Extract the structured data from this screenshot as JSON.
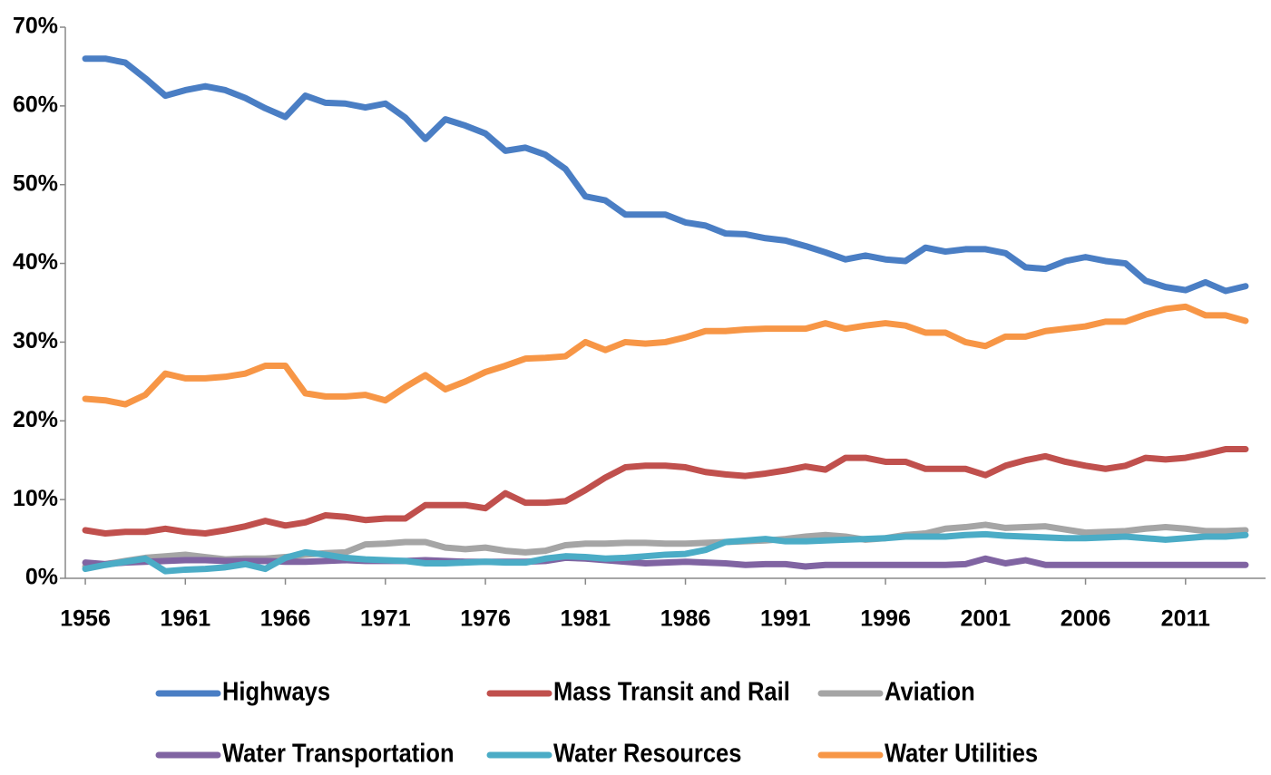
{
  "chart_data": {
    "type": "line",
    "x": [
      1956,
      1957,
      1958,
      1959,
      1960,
      1961,
      1962,
      1963,
      1964,
      1965,
      1966,
      1967,
      1968,
      1969,
      1970,
      1971,
      1972,
      1973,
      1974,
      1975,
      1976,
      1977,
      1978,
      1979,
      1980,
      1981,
      1982,
      1983,
      1984,
      1985,
      1986,
      1987,
      1988,
      1989,
      1990,
      1991,
      1992,
      1993,
      1994,
      1995,
      1996,
      1997,
      1998,
      1999,
      2000,
      2001,
      2002,
      2003,
      2004,
      2005,
      2006,
      2007,
      2008,
      2009,
      2010,
      2011,
      2012,
      2013,
      2014
    ],
    "xlim": [
      1955,
      2015
    ],
    "xticks": [
      1956,
      1961,
      1966,
      1971,
      1976,
      1981,
      1986,
      1991,
      1996,
      2001,
      2006,
      2011
    ],
    "ylim": [
      0,
      70
    ],
    "yticks": [
      {
        "value": 0,
        "label": "0%"
      },
      {
        "value": 10,
        "label": "10%"
      },
      {
        "value": 20,
        "label": "20%"
      },
      {
        "value": 30,
        "label": "30%"
      },
      {
        "value": 40,
        "label": "40%"
      },
      {
        "value": 50,
        "label": "50%"
      },
      {
        "value": 60,
        "label": "60%"
      },
      {
        "value": 70,
        "label": "70%"
      }
    ],
    "grid": false,
    "legend": "bottom",
    "series": [
      {
        "name": "Highways",
        "color": "#4a7ec4",
        "values": [
          66.0,
          66.0,
          65.5,
          63.5,
          61.3,
          62.0,
          62.5,
          62.0,
          61.0,
          59.7,
          58.6,
          61.3,
          60.4,
          60.3,
          59.8,
          60.3,
          58.5,
          55.8,
          58.3,
          57.5,
          56.5,
          54.3,
          54.7,
          53.8,
          52.0,
          48.5,
          48.0,
          46.2,
          46.2,
          46.2,
          45.2,
          44.8,
          43.8,
          43.7,
          43.2,
          42.9,
          42.2,
          41.4,
          40.5,
          41.0,
          40.5,
          40.3,
          42.0,
          41.5,
          41.8,
          41.8,
          41.3,
          39.5,
          39.3,
          40.3,
          40.8,
          40.3,
          40.0,
          37.8,
          37.0,
          36.6,
          37.6,
          36.5,
          37.1
        ]
      },
      {
        "name": "Mass Transit and Rail",
        "color": "#c0504d",
        "values": [
          6.1,
          5.7,
          5.9,
          5.9,
          6.3,
          5.9,
          5.7,
          6.1,
          6.6,
          7.3,
          6.7,
          7.1,
          8,
          7.8,
          7.4,
          7.6,
          7.6,
          9.3,
          9.3,
          9.3,
          8.9,
          10.8,
          9.6,
          9.6,
          9.8,
          11.2,
          12.8,
          14.1,
          14.3,
          14.3,
          14.1,
          13.5,
          13.2,
          13,
          13.3,
          13.7,
          14.2,
          13.8,
          15.3,
          15.3,
          14.8,
          14.8,
          13.9,
          13.9,
          13.9,
          13.1,
          14.3,
          15,
          15.5,
          14.8,
          14.3,
          13.9,
          14.3,
          15.3,
          15.1,
          15.3,
          15.8,
          16.4,
          16.4
        ]
      },
      {
        "name": "Aviation",
        "color": "#a5a5a5",
        "values": [
          1.5,
          1.8,
          2.2,
          2.6,
          2.8,
          3.0,
          2.7,
          2.4,
          2.5,
          2.5,
          2.7,
          3.0,
          3.2,
          3.3,
          4.3,
          4.4,
          4.6,
          4.6,
          3.9,
          3.7,
          3.9,
          3.5,
          3.3,
          3.5,
          4.2,
          4.4,
          4.4,
          4.5,
          4.5,
          4.4,
          4.4,
          4.5,
          4.6,
          4.7,
          4.8,
          5.0,
          5.3,
          5.5,
          5.3,
          4.9,
          5.1,
          5.5,
          5.7,
          6.3,
          6.5,
          6.8,
          6.4,
          6.5,
          6.6,
          6.2,
          5.8,
          5.9,
          6.0,
          6.3,
          6.5,
          6.3,
          6.0,
          6.0,
          6.1
        ]
      },
      {
        "name": "Water Transportation",
        "color": "#8064a2",
        "values": [
          2.0,
          1.8,
          2.0,
          2.1,
          2.2,
          2.3,
          2.3,
          2.2,
          2.2,
          2.2,
          2.1,
          2.1,
          2.2,
          2.3,
          2.2,
          2.2,
          2.2,
          2.3,
          2.2,
          2.1,
          2.1,
          2.1,
          2.1,
          2.2,
          2.6,
          2.5,
          2.3,
          2.1,
          1.9,
          2.0,
          2.1,
          2.0,
          1.9,
          1.7,
          1.8,
          1.8,
          1.5,
          1.7,
          1.7,
          1.7,
          1.7,
          1.7,
          1.7,
          1.7,
          1.8,
          2.5,
          1.9,
          2.3,
          1.7,
          1.7,
          1.7,
          1.7,
          1.7,
          1.7,
          1.7,
          1.7,
          1.7,
          1.7,
          1.7
        ]
      },
      {
        "name": "Water Resources",
        "color": "#4bacc6",
        "values": [
          1.2,
          1.7,
          2.1,
          2.5,
          0.9,
          1.1,
          1.2,
          1.4,
          1.8,
          1.2,
          2.6,
          3.3,
          3.0,
          2.6,
          2.4,
          2.3,
          2.2,
          1.9,
          1.9,
          2.0,
          2.1,
          2.0,
          2.0,
          2.5,
          2.8,
          2.7,
          2.5,
          2.6,
          2.8,
          3.0,
          3.1,
          3.6,
          4.6,
          4.8,
          5.0,
          4.7,
          4.7,
          4.8,
          4.9,
          5.0,
          5.1,
          5.3,
          5.3,
          5.3,
          5.5,
          5.6,
          5.4,
          5.3,
          5.2,
          5.1,
          5.1,
          5.2,
          5.3,
          5.1,
          4.9,
          5.1,
          5.3,
          5.3,
          5.5
        ]
      },
      {
        "name": "Water Utilities",
        "color": "#f79646",
        "values": [
          22.8,
          22.6,
          22.1,
          23.3,
          26,
          25.4,
          25.4,
          25.6,
          26,
          27,
          27,
          23.5,
          23.1,
          23.1,
          23.3,
          22.6,
          24.3,
          25.8,
          24,
          25,
          26.2,
          27,
          27.9,
          28,
          28.2,
          30,
          29,
          30,
          29.8,
          30,
          30.6,
          31.4,
          31.4,
          31.6,
          31.7,
          31.7,
          31.7,
          32.4,
          31.7,
          32.1,
          32.4,
          32.1,
          31.2,
          31.2,
          30,
          29.5,
          30.7,
          30.7,
          31.4,
          31.7,
          32,
          32.6,
          32.6,
          33.5,
          34.2,
          34.5,
          33.4,
          33.4,
          32.7
        ]
      }
    ]
  }
}
